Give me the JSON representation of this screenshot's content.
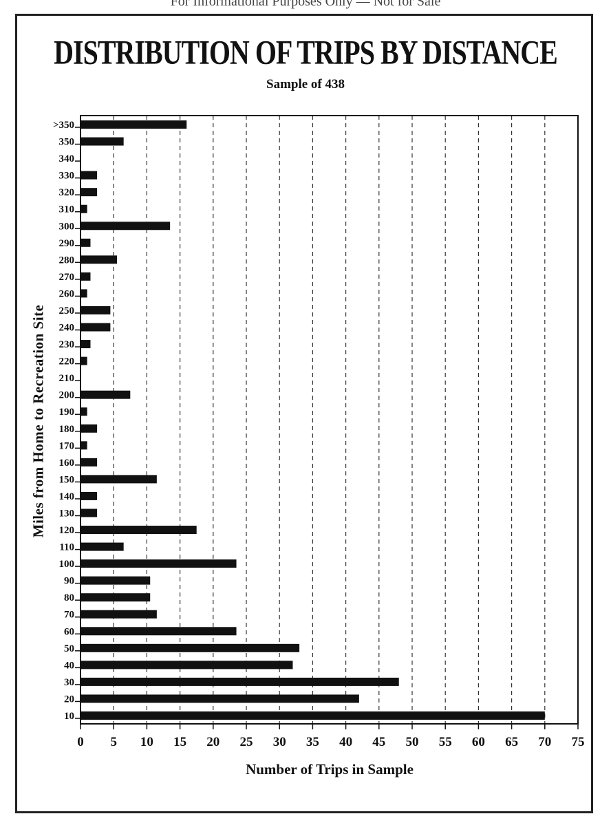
{
  "header_text": "For Informational Purposes Only — Not for Sale",
  "chart_data": {
    "type": "bar",
    "orientation": "horizontal",
    "title": "DISTRIBUTION OF TRIPS BY DISTANCE",
    "subtitle": "Sample of 438",
    "xlabel": "Number of Trips in Sample",
    "ylabel": "Miles from Home to Recreation Site",
    "xlim": [
      0,
      75
    ],
    "xticks": [
      "0",
      "5",
      "10",
      "15",
      "20",
      "25",
      "30",
      "35",
      "40",
      "45",
      "50",
      "55",
      "60",
      "65",
      "70",
      "75"
    ],
    "grid": "vertical dashed",
    "bar_color": "#111111",
    "categories": [
      ">350",
      "350",
      "340",
      "330",
      "320",
      "310",
      "300",
      "290",
      "280",
      "270",
      "260",
      "250",
      "240",
      "230",
      "220",
      "210",
      "200",
      "190",
      "180",
      "170",
      "160",
      "150",
      "140",
      "130",
      "120",
      "110",
      "100",
      "90",
      "80",
      "70",
      "60",
      "50",
      "40",
      "30",
      "20",
      "10"
    ],
    "values": [
      16,
      6.5,
      0,
      2.5,
      2.5,
      1,
      13.5,
      1.5,
      5.5,
      1.5,
      1,
      4.5,
      4.5,
      1.5,
      1,
      0,
      7.5,
      1,
      2.5,
      1,
      2.5,
      11.5,
      2.5,
      2.5,
      17.5,
      6.5,
      23.5,
      10.5,
      10.5,
      11.5,
      23.5,
      33,
      32,
      48,
      42,
      70
    ]
  }
}
